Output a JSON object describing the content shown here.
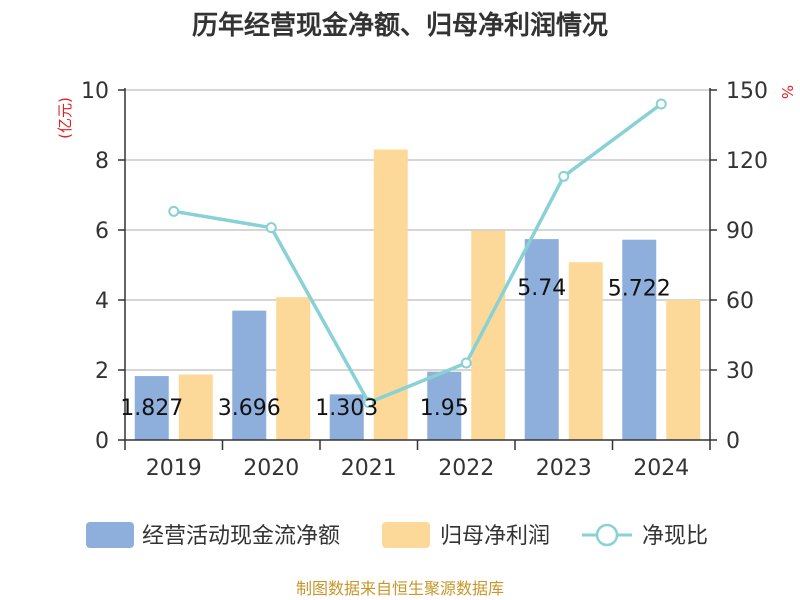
{
  "title": "历年经营现金净额、归母净利润情况",
  "source": "制图数据来自恒生聚源数据库",
  "colors": {
    "cash": "#8eaedb",
    "profit": "#fdd999",
    "ratio": "#88d1d5"
  },
  "chart_data": {
    "type": "bar",
    "categories": [
      "2019",
      "2020",
      "2021",
      "2022",
      "2023",
      "2024"
    ],
    "series": [
      {
        "name": "经营活动现金流净额",
        "type": "bar",
        "axis": "left",
        "values": [
          1.827,
          3.696,
          1.303,
          1.95,
          5.74,
          5.722
        ],
        "labels": [
          "1.827",
          "3.696",
          "1.303",
          "1.95",
          "5.74",
          "5.722"
        ]
      },
      {
        "name": "归母净利润",
        "type": "bar",
        "axis": "left",
        "values": [
          1.87,
          4.08,
          8.3,
          5.98,
          5.08,
          4.0
        ]
      },
      {
        "name": "净现比",
        "type": "line",
        "axis": "right",
        "values": [
          98,
          91,
          16,
          33,
          113,
          144
        ]
      }
    ],
    "ylabel_left": "(亿元)",
    "ylabel_right": "%",
    "ylim_left": [
      0,
      10
    ],
    "ylim_right": [
      0,
      150
    ],
    "yticks_left": [
      "0",
      "2",
      "4",
      "6",
      "8",
      "10"
    ],
    "yticks_right": [
      "0",
      "30",
      "60",
      "90",
      "120",
      "150"
    ],
    "grid": true,
    "legend_position": "bottom"
  }
}
